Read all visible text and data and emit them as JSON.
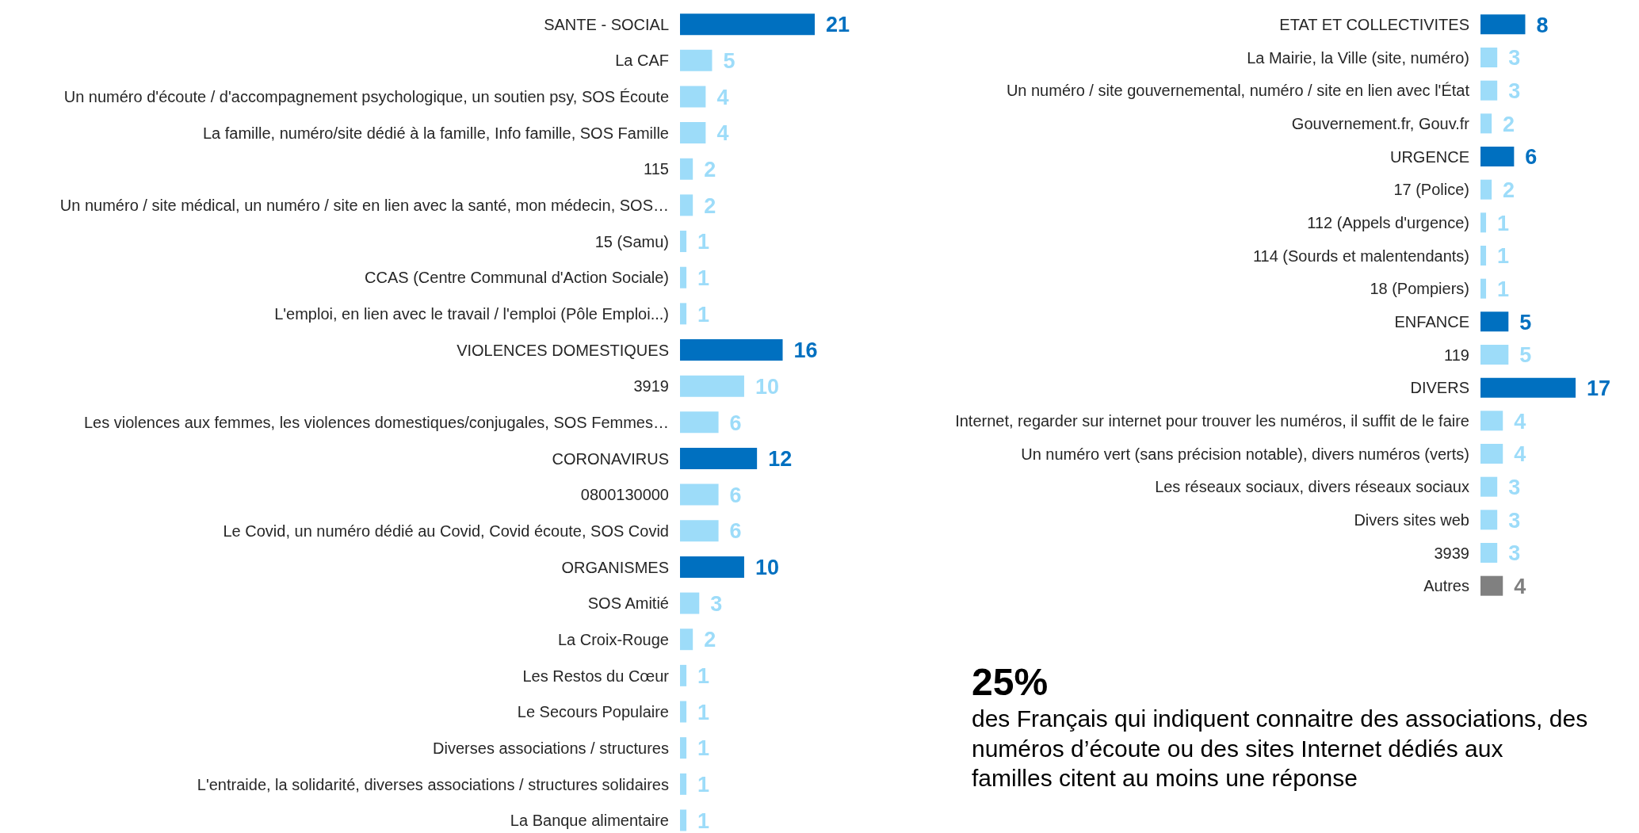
{
  "chart_data": [
    {
      "type": "bar",
      "orientation": "horizontal",
      "data_labels": true,
      "categories": [
        "SANTE - SOCIAL",
        "La CAF",
        "Un numéro d'écoute / d'accompagnement psychologique, un soutien psy, SOS Écoute",
        "La famille, numéro/site dédié à la famille, Info famille, SOS Famille",
        "115",
        "Un numéro / site médical, un numéro / site en lien avec la santé, mon médecin, SOS…",
        "15 (Samu)",
        "CCAS (Centre Communal d'Action Sociale)",
        "L'emploi, en lien avec le travail / l'emploi (Pôle Emploi...)",
        "VIOLENCES DOMESTIQUES",
        "3919",
        "Les violences aux femmes, les violences domestiques/conjugales, SOS Femmes…",
        "CORONAVIRUS",
        "0800130000",
        "Le Covid, un numéro dédié au Covid, Covid écoute, SOS Covid",
        "ORGANISMES",
        "SOS Amitié",
        "La Croix-Rouge",
        "Les Restos du Cœur",
        "Le Secours Populaire",
        "Diverses associations / structures",
        "L'entraide, la solidarité, diverses associations / structures solidaires",
        "La Banque alimentaire"
      ],
      "values": [
        21,
        5,
        4,
        4,
        2,
        2,
        1,
        1,
        1,
        16,
        10,
        6,
        12,
        6,
        6,
        10,
        3,
        2,
        1,
        1,
        1,
        1,
        1
      ],
      "colors": [
        "#0070c0",
        "#9ddcf9",
        "#9ddcf9",
        "#9ddcf9",
        "#9ddcf9",
        "#9ddcf9",
        "#9ddcf9",
        "#9ddcf9",
        "#9ddcf9",
        "#0070c0",
        "#9ddcf9",
        "#9ddcf9",
        "#0070c0",
        "#9ddcf9",
        "#9ddcf9",
        "#0070c0",
        "#9ddcf9",
        "#9ddcf9",
        "#9ddcf9",
        "#9ddcf9",
        "#9ddcf9",
        "#9ddcf9",
        "#9ddcf9"
      ]
    },
    {
      "type": "bar",
      "orientation": "horizontal",
      "data_labels": true,
      "categories": [
        "ETAT ET COLLECTIVITES",
        "La Mairie, la Ville (site, numéro)",
        "Un numéro / site gouvernemental, numéro / site en lien avec l'État",
        "Gouvernement.fr, Gouv.fr",
        "URGENCE",
        "17 (Police)",
        "112 (Appels d'urgence)",
        "114 (Sourds et malentendants)",
        "18 (Pompiers)",
        "ENFANCE",
        "119",
        "DIVERS",
        "Internet, regarder sur internet pour trouver les numéros, il suffit de le faire",
        "Un numéro vert (sans précision notable), divers numéros (verts)",
        "Les réseaux sociaux, divers réseaux sociaux",
        "Divers sites web",
        "3939",
        "Autres"
      ],
      "values": [
        8,
        3,
        3,
        2,
        6,
        2,
        1,
        1,
        1,
        5,
        5,
        17,
        4,
        4,
        3,
        3,
        3,
        4
      ],
      "colors": [
        "#0070c0",
        "#9ddcf9",
        "#9ddcf9",
        "#9ddcf9",
        "#0070c0",
        "#9ddcf9",
        "#9ddcf9",
        "#9ddcf9",
        "#9ddcf9",
        "#0070c0",
        "#9ddcf9",
        "#0070c0",
        "#9ddcf9",
        "#9ddcf9",
        "#9ddcf9",
        "#9ddcf9",
        "#9ddcf9",
        "#808080"
      ]
    },
    {
      "type": "other",
      "title": "25%",
      "subtitle": "des Français qui indiquent connaitre des associations, des numéros d’écoute ou des sites Internet dédiés aux familles citent au moins une réponse"
    }
  ]
}
